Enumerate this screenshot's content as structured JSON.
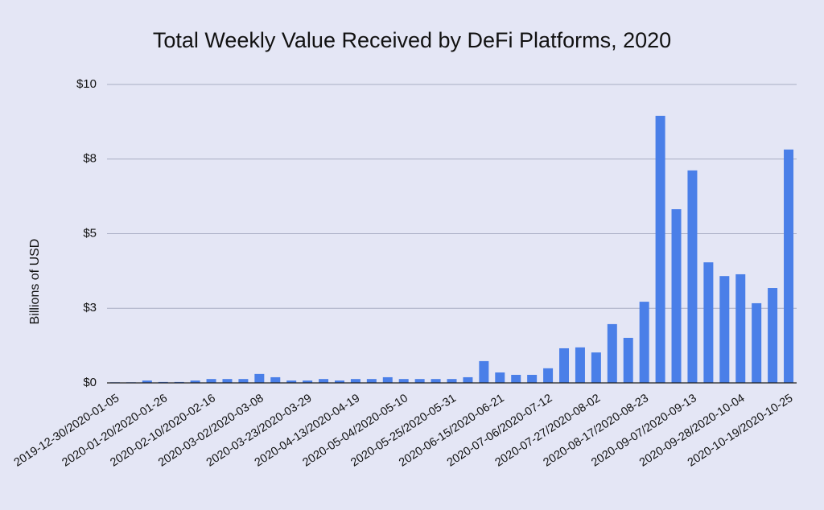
{
  "chart_data": {
    "type": "bar",
    "title": "Total Weekly Value Received by DeFi Platforms, 2020",
    "y_label": "Billions of USD",
    "color": "#4a7fe8",
    "grid": true,
    "categories": [
      "2019-12-30/2020-01-05",
      null,
      null,
      "2020-01-20/2020-01-26",
      null,
      null,
      "2020-02-10/2020-02-16",
      null,
      null,
      "2020-03-02/2020-03-08",
      null,
      null,
      "2020-03-23/2020-03-29",
      null,
      null,
      "2020-04-13/2020-04-19",
      null,
      null,
      "2020-05-04/2020-05-10",
      null,
      null,
      "2020-05-25/2020-05-31",
      null,
      null,
      "2020-06-15/2020-06-21",
      null,
      null,
      "2020-07-06/2020-07-12",
      null,
      null,
      "2020-07-27/2020-08-02",
      null,
      null,
      "2020-08-17/2020-08-23",
      null,
      null,
      "2020-09-07/2020-09-13",
      null,
      null,
      "2020-09-28/2020-10-04",
      null,
      null,
      "2020-10-19/2020-10-25"
    ],
    "values": [
      0.02,
      0.02,
      0.08,
      0.03,
      0.03,
      0.08,
      0.13,
      0.13,
      0.13,
      0.3,
      0.19,
      0.08,
      0.08,
      0.13,
      0.08,
      0.13,
      0.13,
      0.19,
      0.13,
      0.13,
      0.13,
      0.13,
      0.19,
      0.73,
      0.35,
      0.27,
      0.27,
      0.49,
      1.16,
      1.19,
      1.02,
      1.97,
      1.51,
      2.72,
      8.95,
      5.82,
      7.12,
      4.04,
      3.58,
      3.64,
      2.67,
      3.18,
      7.82
    ],
    "ylim": [
      0,
      10
    ],
    "yticks": [
      {
        "value": 0,
        "label": "$0"
      },
      {
        "value": 2.5,
        "label": "$3"
      },
      {
        "value": 5,
        "label": "$5"
      },
      {
        "value": 7.5,
        "label": "$8"
      },
      {
        "value": 10,
        "label": "$10"
      }
    ]
  }
}
